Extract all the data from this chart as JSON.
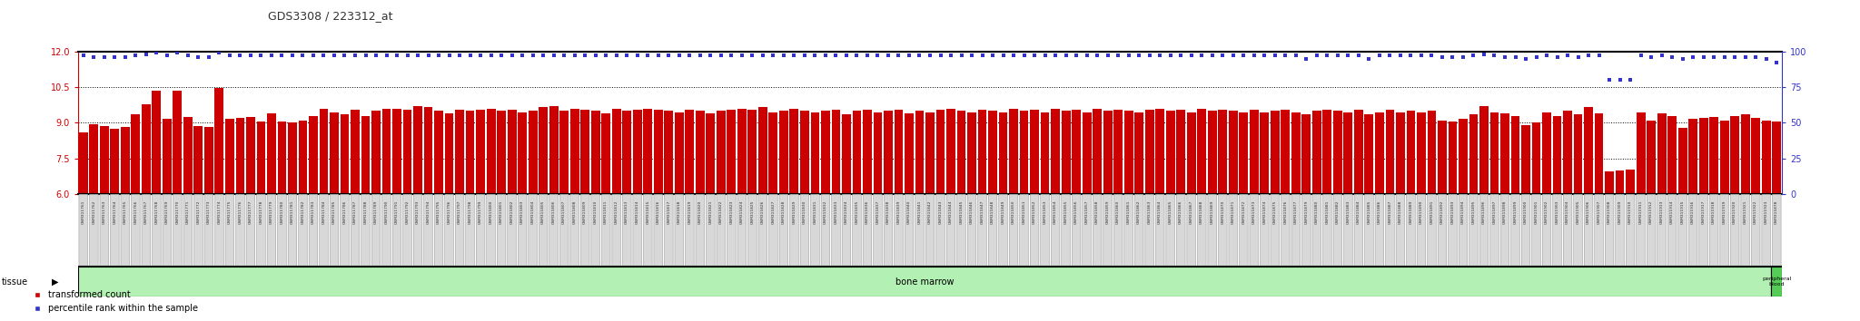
{
  "title": "GDS3308 / 223312_at",
  "title_color": "#333333",
  "left_ylim": [
    6,
    12
  ],
  "right_ylim": [
    0,
    100
  ],
  "left_yticks": [
    6,
    7.5,
    9,
    10.5,
    12
  ],
  "right_yticks": [
    0,
    25,
    50,
    75,
    100
  ],
  "left_ytick_color": "#cc0000",
  "right_ytick_color": "#3333cc",
  "bar_color": "#cc0000",
  "dot_color": "#3333cc",
  "grid_color": "#000000",
  "background_color": "#ffffff",
  "tissue_label": "tissue",
  "bone_marrow_label": "bone marrow",
  "peripheral_blood_label": "peripheral\nblood",
  "tissue_bm_color": "#b3f0b3",
  "tissue_pb_color": "#55cc55",
  "legend_bar_label": "transformed count",
  "legend_dot_label": "percentile rank within the sample",
  "sample_ids": [
    "GSM311761",
    "GSM311762",
    "GSM311763",
    "GSM311764",
    "GSM311765",
    "GSM311766",
    "GSM311767",
    "GSM311768",
    "GSM311769",
    "GSM311770",
    "GSM311771",
    "GSM311772",
    "GSM311773",
    "GSM311774",
    "GSM311775",
    "GSM311776",
    "GSM311777",
    "GSM311778",
    "GSM311779",
    "GSM311780",
    "GSM311781",
    "GSM311782",
    "GSM311783",
    "GSM311784",
    "GSM311785",
    "GSM311786",
    "GSM311787",
    "GSM311788",
    "GSM311789",
    "GSM311790",
    "GSM311791",
    "GSM311792",
    "GSM311793",
    "GSM311794",
    "GSM311795",
    "GSM311796",
    "GSM311797",
    "GSM311798",
    "GSM311799",
    "GSM311800",
    "GSM311801",
    "GSM311802",
    "GSM311803",
    "GSM311804",
    "GSM311805",
    "GSM311806",
    "GSM311807",
    "GSM311808",
    "GSM311809",
    "GSM311810",
    "GSM311811",
    "GSM311812",
    "GSM311813",
    "GSM311814",
    "GSM311815",
    "GSM311816",
    "GSM311817",
    "GSM311818",
    "GSM311819",
    "GSM311820",
    "GSM311821",
    "GSM311822",
    "GSM311823",
    "GSM311824",
    "GSM311825",
    "GSM311826",
    "GSM311827",
    "GSM311828",
    "GSM311829",
    "GSM311830",
    "GSM311831",
    "GSM311832",
    "GSM311833",
    "GSM311834",
    "GSM311835",
    "GSM311836",
    "GSM311837",
    "GSM311838",
    "GSM311839",
    "GSM311840",
    "GSM311841",
    "GSM311842",
    "GSM311843",
    "GSM311844",
    "GSM311845",
    "GSM311846",
    "GSM311847",
    "GSM311848",
    "GSM311849",
    "GSM311850",
    "GSM311851",
    "GSM311852",
    "GSM311853",
    "GSM311854",
    "GSM311855",
    "GSM311856",
    "GSM311857",
    "GSM311858",
    "GSM311859",
    "GSM311860",
    "GSM311861",
    "GSM311862",
    "GSM311863",
    "GSM311864",
    "GSM311865",
    "GSM311866",
    "GSM311867",
    "GSM311868",
    "GSM311869",
    "GSM311870",
    "GSM311871",
    "GSM311872",
    "GSM311873",
    "GSM311874",
    "GSM311875",
    "GSM311876",
    "GSM311877",
    "GSM311879",
    "GSM311880",
    "GSM311881",
    "GSM311882",
    "GSM311883",
    "GSM311884",
    "GSM311885",
    "GSM311886",
    "GSM311887",
    "GSM311888",
    "GSM311889",
    "GSM311890",
    "GSM311891",
    "GSM311892",
    "GSM311893",
    "GSM311894",
    "GSM311895",
    "GSM311896",
    "GSM311897",
    "GSM311898",
    "GSM311899",
    "GSM311900",
    "GSM311901",
    "GSM311902",
    "GSM311903",
    "GSM311904",
    "GSM311905",
    "GSM311906",
    "GSM311907",
    "GSM311908",
    "GSM311909",
    "GSM311910",
    "GSM311911",
    "GSM311912",
    "GSM311913",
    "GSM311914",
    "GSM311915",
    "GSM311916",
    "GSM311917",
    "GSM311918",
    "GSM311919",
    "GSM311920",
    "GSM311921",
    "GSM311922",
    "GSM311923",
    "GSM311878"
  ],
  "bar_values": [
    8.6,
    8.95,
    8.88,
    8.73,
    8.82,
    9.35,
    9.78,
    10.35,
    9.15,
    10.35,
    9.25,
    8.85,
    8.82,
    10.45,
    9.15,
    9.2,
    9.25,
    9.05,
    9.4,
    9.05,
    9.0,
    9.1,
    9.3,
    9.6,
    9.45,
    9.35,
    9.55,
    9.3,
    9.5,
    9.6,
    9.6,
    9.55,
    9.7,
    9.65,
    9.5,
    9.4,
    9.55,
    9.5,
    9.55,
    9.6,
    9.5,
    9.55,
    9.45,
    9.5,
    9.65,
    9.7,
    9.5,
    9.6,
    9.55,
    9.5,
    9.4,
    9.6,
    9.5,
    9.55,
    9.6,
    9.55,
    9.5,
    9.45,
    9.55,
    9.5,
    9.4,
    9.5,
    9.55,
    9.6,
    9.55,
    9.65,
    9.45,
    9.5,
    9.6,
    9.5,
    9.45,
    9.5,
    9.55,
    9.35,
    9.5,
    9.55,
    9.45,
    9.5,
    9.55,
    9.4,
    9.5,
    9.45,
    9.55,
    9.6,
    9.5,
    9.45,
    9.55,
    9.5,
    9.45,
    9.6,
    9.5,
    9.55,
    9.45,
    9.6,
    9.5,
    9.55,
    9.45,
    9.6,
    9.5,
    9.55,
    9.5,
    9.45,
    9.55,
    9.6,
    9.5,
    9.55,
    9.45,
    9.6,
    9.5,
    9.55,
    9.5,
    9.45,
    9.55,
    9.45,
    9.5,
    9.55,
    9.45,
    9.35,
    9.5,
    9.55,
    9.5,
    9.45,
    9.55,
    9.35,
    9.45,
    9.55,
    9.45,
    9.5,
    9.45,
    9.5,
    9.1,
    9.05,
    9.15,
    9.35,
    9.7,
    9.45,
    9.4,
    9.3,
    8.9,
    9.0,
    9.45,
    9.3,
    9.5,
    9.35,
    9.65,
    9.4,
    6.95,
    7.0,
    7.05,
    9.45,
    9.1,
    9.4,
    9.3,
    8.8,
    9.15,
    9.2,
    9.25,
    9.1,
    9.3,
    9.35,
    9.2,
    9.1,
    9.05
  ],
  "dot_values": [
    97,
    96,
    96,
    96,
    96,
    97,
    98,
    99,
    97,
    99,
    97,
    96,
    96,
    99,
    97,
    97,
    97,
    97,
    97,
    97,
    97,
    97,
    97,
    97,
    97,
    97,
    97,
    97,
    97,
    97,
    97,
    97,
    97,
    97,
    97,
    97,
    97,
    97,
    97,
    97,
    97,
    97,
    97,
    97,
    97,
    97,
    97,
    97,
    97,
    97,
    97,
    97,
    97,
    97,
    97,
    97,
    97,
    97,
    97,
    97,
    97,
    97,
    97,
    97,
    97,
    97,
    97,
    97,
    97,
    97,
    97,
    97,
    97,
    97,
    97,
    97,
    97,
    97,
    97,
    97,
    97,
    97,
    97,
    97,
    97,
    97,
    97,
    97,
    97,
    97,
    97,
    97,
    97,
    97,
    97,
    97,
    97,
    97,
    97,
    97,
    97,
    97,
    97,
    97,
    97,
    97,
    97,
    97,
    97,
    97,
    97,
    97,
    97,
    97,
    97,
    97,
    97,
    95,
    97,
    97,
    97,
    97,
    97,
    95,
    97,
    97,
    97,
    97,
    97,
    97,
    96,
    96,
    96,
    97,
    98,
    97,
    96,
    96,
    95,
    96,
    97,
    96,
    97,
    96,
    97,
    97,
    80,
    80,
    80,
    97,
    96,
    97,
    96,
    95,
    96,
    96,
    96,
    96,
    96,
    96,
    96,
    95,
    92
  ],
  "bone_marrow_count": 162,
  "peripheral_blood_count": 1
}
